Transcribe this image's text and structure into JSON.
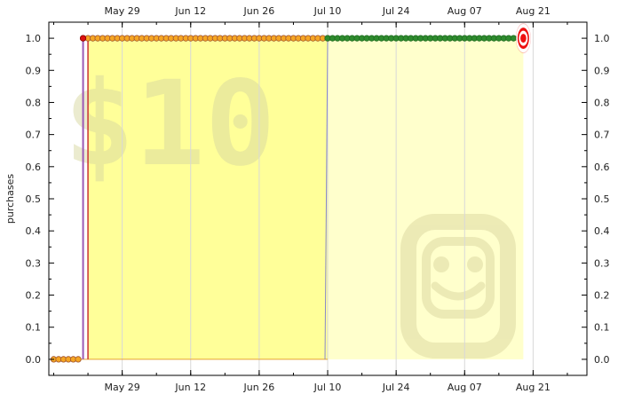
{
  "chart_data": {
    "type": "line",
    "title": "",
    "xlabel": "",
    "ylabel": "purchases",
    "ylim": [
      -0.05,
      1.05
    ],
    "yticks": [
      "0.0",
      "0.1",
      "0.2",
      "0.3",
      "0.4",
      "0.5",
      "0.6",
      "0.7",
      "0.8",
      "0.9",
      "1.0"
    ],
    "xlim": [
      "2022-05-14",
      "2022-09-01"
    ],
    "xticks": [
      {
        "date": "2022-05-29",
        "label": "May 29"
      },
      {
        "date": "2022-06-12",
        "label": "Jun 12"
      },
      {
        "date": "2022-06-26",
        "label": "Jun 26"
      },
      {
        "date": "2022-07-10",
        "label": "Jul 10"
      },
      {
        "date": "2022-07-24",
        "label": "Jul 24"
      },
      {
        "date": "2022-08-07",
        "label": "Aug 07"
      },
      {
        "date": "2022-08-21",
        "label": "Aug 21"
      }
    ],
    "grid": "vertical",
    "shaded_periods": [
      {
        "start": "2022-05-22",
        "end": "2022-07-10",
        "color": "#ffff99"
      },
      {
        "start": "2022-07-10",
        "end": "2022-08-19",
        "color": "#ffffcc"
      }
    ],
    "watermark": {
      "text": "$10",
      "icon": "smiley-face-icon"
    },
    "series": [
      {
        "segments": [
          {
            "start": "2022-05-15",
            "end": "2022-05-20",
            "value": 0.0,
            "marker": "orange"
          },
          {
            "start": "2022-05-21",
            "end": "2022-07-10",
            "value": 1.0,
            "marker": "orange"
          },
          {
            "start": "2022-07-10",
            "end": "2022-08-19",
            "value": 1.0,
            "marker": "green"
          }
        ],
        "step_dates": [
          "2022-05-21",
          "2022-05-22"
        ],
        "endpoint": {
          "date": "2022-08-19",
          "value": 1.0,
          "marker": "target-icon"
        }
      }
    ],
    "colors": {
      "orange_marker": "#f5a623",
      "orange_edge": "#a0522d",
      "green_marker": "#2e8b2e",
      "green_edge": "#1e6b1e",
      "step_purple": "#9b59b6",
      "step_red": "#cc3333",
      "baseline": "#e8a030",
      "target_red": "#ee1111"
    }
  }
}
